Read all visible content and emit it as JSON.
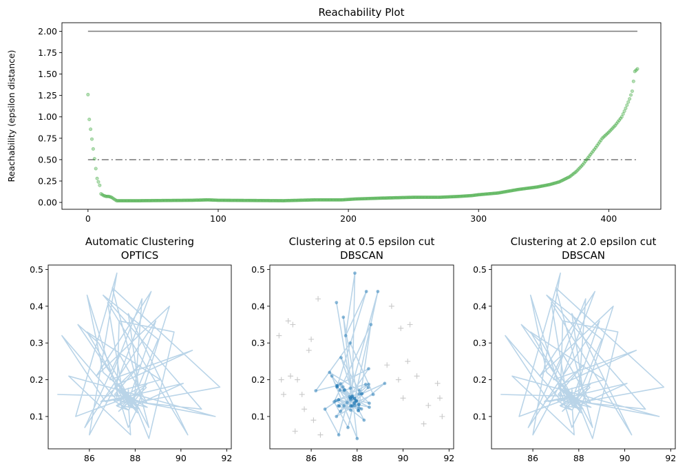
{
  "chart_data": [
    {
      "type": "scatter",
      "title": "Reachability Plot",
      "xlabel": "",
      "ylabel": "Reachability (epsilon distance)",
      "xlim": [
        -20,
        440
      ],
      "ylim": [
        -0.08,
        2.1
      ],
      "xticks": [
        "0",
        "100",
        "200",
        "300",
        "400"
      ],
      "yticks": [
        "0.00",
        "0.25",
        "0.50",
        "0.75",
        "1.00",
        "1.25",
        "1.50",
        "1.75",
        "2.00"
      ],
      "marker_color": "#2ca02c",
      "hlines": [
        {
          "y": 2.0,
          "style": "solid",
          "color": "#808080"
        },
        {
          "y": 0.5,
          "style": "dashdot",
          "color": "#808080"
        }
      ],
      "x": [
        0,
        1,
        3,
        5,
        7,
        9,
        10,
        12,
        14,
        16,
        18,
        20,
        22,
        25,
        40,
        80,
        92,
        100,
        150,
        175,
        195,
        205,
        225,
        250,
        270,
        285,
        295,
        300,
        315,
        330,
        345,
        355,
        362,
        370,
        375,
        380,
        385,
        390,
        395,
        400,
        405,
        410,
        413,
        416,
        418,
        420,
        422
      ],
      "y": [
        1.26,
        0.97,
        0.74,
        0.51,
        0.28,
        0.2,
        0.1,
        0.08,
        0.07,
        0.07,
        0.06,
        0.04,
        0.02,
        0.02,
        0.02,
        0.025,
        0.03,
        0.025,
        0.02,
        0.03,
        0.03,
        0.04,
        0.05,
        0.06,
        0.06,
        0.07,
        0.08,
        0.09,
        0.11,
        0.15,
        0.18,
        0.21,
        0.24,
        0.3,
        0.36,
        0.44,
        0.54,
        0.64,
        0.75,
        0.82,
        0.9,
        1.0,
        1.1,
        1.21,
        1.3,
        1.53,
        1.56
      ]
    },
    {
      "type": "line",
      "title": "Automatic Clustering\nOPTICS",
      "title_lines": [
        "Automatic Clustering",
        "OPTICS"
      ],
      "xlim": [
        84.2,
        92.2
      ],
      "ylim": [
        0.012,
        0.512
      ],
      "xticks": [
        "86",
        "88",
        "90",
        "92"
      ],
      "yticks": [
        "0.1",
        "0.2",
        "0.3",
        "0.4",
        "0.5"
      ],
      "line_color": "#b9d4e8",
      "x": [
        84.6,
        85.4,
        87.2,
        86.0,
        88.7,
        86.3,
        89.5,
        87.7,
        85.9,
        86.6,
        88.6,
        89.7,
        87.3,
        84.8,
        86.7,
        90.1,
        88.6,
        87.0,
        91.7,
        86.4,
        85.5,
        88.1,
        90.5,
        86.9,
        88.3,
        91.5,
        85.1,
        87.8,
        89.0,
        86.6,
        90.9,
        87.3,
        85.8,
        88.9,
        87.6,
        85.9,
        89.1,
        86.8,
        90.3,
        87.7,
        86.5,
        88.2,
        87.1,
        88.0
      ],
      "y": [
        0.16,
        0.1,
        0.49,
        0.05,
        0.44,
        0.21,
        0.4,
        0.07,
        0.43,
        0.22,
        0.04,
        0.33,
        0.36,
        0.32,
        0.14,
        0.19,
        0.07,
        0.45,
        0.18,
        0.3,
        0.35,
        0.11,
        0.28,
        0.2,
        0.42,
        0.1,
        0.21,
        0.05,
        0.31,
        0.43,
        0.12,
        0.27,
        0.07,
        0.36,
        0.15,
        0.33,
        0.2,
        0.41,
        0.05,
        0.38,
        0.14,
        0.24,
        0.16,
        0.13
      ]
    },
    {
      "type": "scatter",
      "title": "Clustering at 0.5 epsilon cut\nDBSCAN",
      "title_lines": [
        "Clustering at 0.5 epsilon cut",
        "DBSCAN"
      ],
      "xlim": [
        84.2,
        92.2
      ],
      "ylim": [
        0.012,
        0.512
      ],
      "xticks": [
        "86",
        "88",
        "90",
        "92"
      ],
      "yticks": [
        "0.1",
        "0.2",
        "0.3",
        "0.4",
        "0.5"
      ],
      "line_color": "#b9d4e8",
      "point_color": "#1f77b4",
      "noise_color": "#c8c8c8",
      "x": [
        87.1,
        87.9,
        87.5,
        88.4,
        86.8,
        88.1,
        87.3,
        88.6,
        87.0,
        87.6,
        88.9,
        87.2,
        86.6,
        88.3,
        87.8,
        89.2,
        87.4,
        88.0,
        86.9,
        88.7,
        87.7,
        86.2,
        88.5,
        87.1,
        87.9
      ],
      "y": [
        0.41,
        0.49,
        0.32,
        0.44,
        0.22,
        0.17,
        0.26,
        0.35,
        0.14,
        0.07,
        0.44,
        0.05,
        0.12,
        0.09,
        0.15,
        0.19,
        0.37,
        0.04,
        0.21,
        0.16,
        0.3,
        0.17,
        0.23,
        0.1,
        0.13
      ],
      "noise_x": [
        84.6,
        85.0,
        85.2,
        85.9,
        86.3,
        86.0,
        85.4,
        85.6,
        86.1,
        85.7,
        84.8,
        85.3,
        86.4,
        89.5,
        89.9,
        90.3,
        90.2,
        89.8,
        90.6,
        91.1,
        91.5,
        91.7,
        90.9,
        89.3,
        90.0,
        85.1,
        84.7,
        91.6
      ],
      "noise_y": [
        0.32,
        0.36,
        0.35,
        0.28,
        0.42,
        0.31,
        0.2,
        0.16,
        0.09,
        0.12,
        0.16,
        0.06,
        0.05,
        0.4,
        0.34,
        0.35,
        0.25,
        0.2,
        0.21,
        0.13,
        0.19,
        0.1,
        0.08,
        0.24,
        0.15,
        0.21,
        0.2,
        0.15
      ]
    },
    {
      "type": "line",
      "title": "Clustering at 2.0 epsilon cut\nDBSCAN",
      "title_lines": [
        "Clustering at 2.0 epsilon cut",
        "DBSCAN"
      ],
      "xlim": [
        84.2,
        92.2
      ],
      "ylim": [
        0.012,
        0.512
      ],
      "xticks": [
        "86",
        "88",
        "90",
        "92"
      ],
      "yticks": [
        "0.1",
        "0.2",
        "0.3",
        "0.4",
        "0.5"
      ],
      "line_color": "#b9d4e8",
      "x": [
        84.6,
        85.4,
        87.2,
        86.0,
        88.7,
        86.3,
        89.5,
        87.7,
        85.9,
        86.6,
        88.6,
        89.7,
        87.3,
        84.8,
        86.7,
        90.1,
        88.6,
        87.0,
        91.7,
        86.4,
        85.5,
        88.1,
        90.5,
        86.9,
        88.3,
        91.5,
        85.1,
        87.8,
        89.0,
        86.6,
        90.9,
        87.3,
        85.8,
        88.9,
        87.6,
        85.9,
        89.1,
        86.8,
        90.3,
        87.7,
        86.5,
        88.2,
        87.1,
        88.0
      ],
      "y": [
        0.16,
        0.1,
        0.49,
        0.05,
        0.44,
        0.21,
        0.4,
        0.07,
        0.43,
        0.22,
        0.04,
        0.33,
        0.36,
        0.32,
        0.14,
        0.19,
        0.07,
        0.45,
        0.18,
        0.3,
        0.35,
        0.11,
        0.28,
        0.2,
        0.42,
        0.1,
        0.21,
        0.05,
        0.31,
        0.43,
        0.12,
        0.27,
        0.07,
        0.36,
        0.15,
        0.33,
        0.2,
        0.41,
        0.05,
        0.38,
        0.14,
        0.24,
        0.16,
        0.13
      ]
    }
  ]
}
